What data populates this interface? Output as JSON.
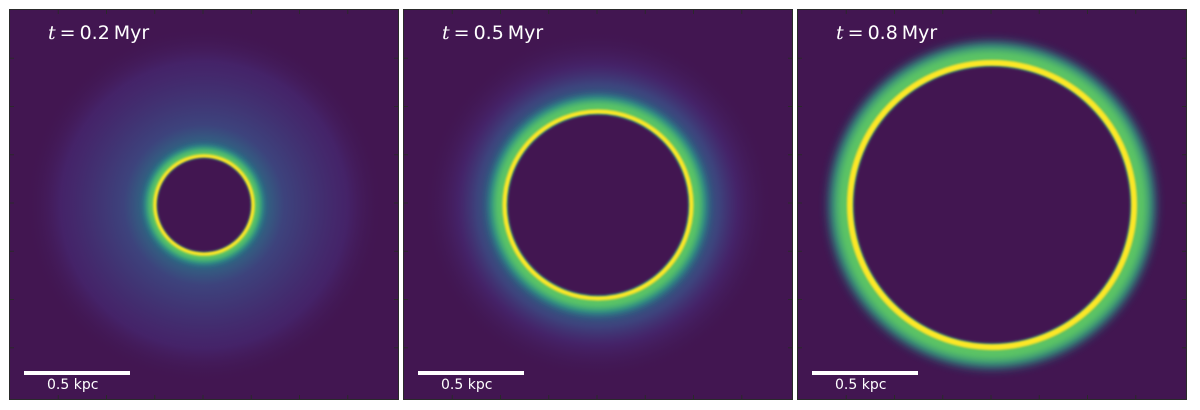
{
  "panels": [
    {
      "time_var": "t",
      "time_eq": "=",
      "time_value": "0.2",
      "time_unit": "Myr",
      "scale_label": "0.5 kpc",
      "ring_radius_kpc": 0.25,
      "ring_width_kpc": 0.04,
      "halo_radius_kpc": 0.85
    },
    {
      "time_var": "t",
      "time_eq": "=",
      "time_value": "0.5",
      "time_unit": "Myr",
      "scale_label": "0.5 kpc",
      "ring_radius_kpc": 0.47,
      "ring_width_kpc": 0.06,
      "halo_radius_kpc": 0.83
    },
    {
      "time_var": "t",
      "time_eq": "=",
      "time_value": "0.8",
      "time_unit": "Myr",
      "scale_label": "0.5 kpc",
      "ring_radius_kpc": 0.71,
      "ring_width_kpc": 0.08,
      "halo_radius_kpc": 0.74
    }
  ],
  "colormap": {
    "background": "#421651",
    "dark": "#472d7b",
    "blue": "#3b528b",
    "teal": "#21908d",
    "green": "#5ec962",
    "yellow": "#fde725"
  }
}
